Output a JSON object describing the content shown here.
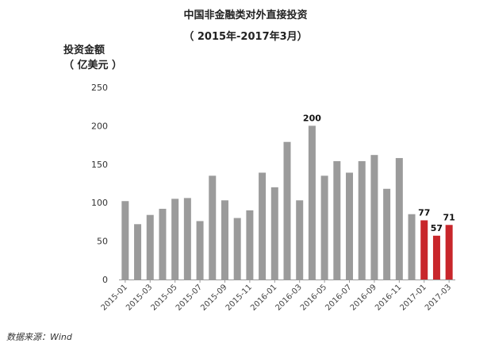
{
  "chart_data": {
    "type": "bar",
    "title": "中国非金融类对外直接投资",
    "subtitle": "（ 2015年-2017年3月）",
    "ylabel_line1": "投资金额",
    "ylabel_line2": "（ 亿美元 ）",
    "ylim": [
      0,
      250
    ],
    "yticks": [
      0,
      50,
      100,
      150,
      200,
      250
    ],
    "categories": [
      "2015-01",
      "2015-02",
      "2015-03",
      "2015-04",
      "2015-05",
      "2015-06",
      "2015-07",
      "2015-08",
      "2015-09",
      "2015-10",
      "2015-11",
      "2015-12",
      "2016-01",
      "2016-02",
      "2016-03",
      "2016-04",
      "2016-05",
      "2016-06",
      "2016-07",
      "2016-08",
      "2016-09",
      "2016-10",
      "2016-11",
      "2016-12",
      "2017-01",
      "2017-02",
      "2017-03"
    ],
    "xtick_labels": [
      "2015-01",
      "2015-03",
      "2015-05",
      "2015-07",
      "2015-09",
      "2015-11",
      "2016-01",
      "2016-03",
      "2016-05",
      "2016-07",
      "2016-09",
      "2016-11",
      "2017-01",
      "2017-03"
    ],
    "values": [
      102,
      72,
      84,
      92,
      105,
      106,
      76,
      135,
      103,
      80,
      90,
      139,
      120,
      179,
      103,
      200,
      135,
      154,
      139,
      154,
      162,
      118,
      158,
      85,
      77,
      57,
      71
    ],
    "data_labels": [
      {
        "index": 15,
        "text": "200"
      },
      {
        "index": 24,
        "text": "77"
      },
      {
        "index": 25,
        "text": "57"
      },
      {
        "index": 26,
        "text": "71"
      }
    ],
    "colors": {
      "default": "#9b9b9b",
      "highlight": "#c8262b"
    },
    "highlight_from_index": 24,
    "grid": false
  },
  "source": "数据来源：Wind"
}
